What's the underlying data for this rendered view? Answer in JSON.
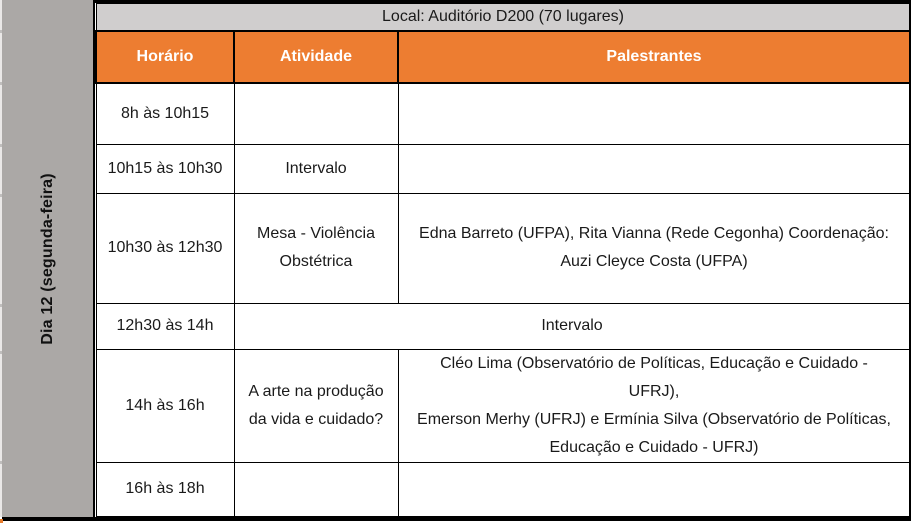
{
  "sidebar": {
    "label": "Dia 12 (segunda-feira)"
  },
  "table": {
    "location": "Local: Auditório D200 (70 lugares)",
    "columns": [
      "Horário",
      "Atividade",
      "Palestrantes"
    ],
    "rows": [
      {
        "horario": [
          "8h às 10h15"
        ],
        "atividade": [],
        "palestrantes": []
      },
      {
        "horario": [
          "10h15 às 10h30"
        ],
        "atividade": [
          "Intervalo"
        ],
        "palestrantes": []
      },
      {
        "horario": [
          "10h30 às 12h30"
        ],
        "atividade": [
          "Mesa - Violência",
          "Obstétrica"
        ],
        "palestrantes": [
          "Edna Barreto (UFPA), Rita Vianna (Rede Cegonha) Coordenação:",
          "Auzi Cleyce Costa (UFPA)"
        ]
      },
      {
        "horario": [
          "12h30 às 14h"
        ],
        "merged": [
          "Intervalo"
        ]
      },
      {
        "horario": [
          "14h às 16h"
        ],
        "atividade": [
          "A arte na produção",
          "da vida e cuidado?"
        ],
        "palestrantes": [
          "Cléo Lima (Observatório de Políticas, Educação e Cuidado - UFRJ),",
          "Emerson Merhy (UFRJ) e Ermínia Silva (Observatório de Políticas,",
          "Educação e Cuidado - UFRJ)"
        ]
      },
      {
        "horario": [
          "16h às 18h"
        ],
        "atividade": [],
        "palestrantes": []
      }
    ],
    "colors": {
      "accent_orange": "#ED7D31",
      "header_text": "#FFFFFF",
      "location_row_bg": "#D0CECE",
      "sidebar_bg": "#ABA8A6",
      "table_border": "#000000",
      "body_text": "#1A1A1A"
    }
  }
}
